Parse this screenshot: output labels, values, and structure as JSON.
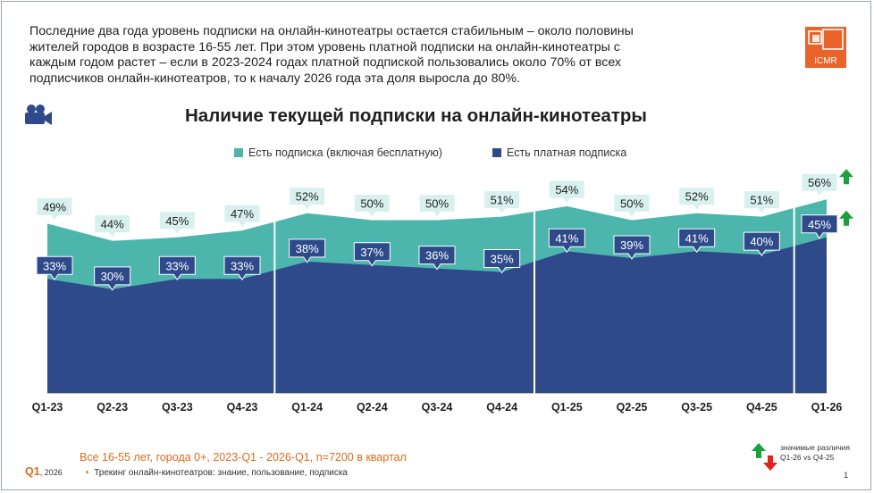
{
  "intro_lines": [
    "Последние  два года уровень подписки  на онлайн-кинотеатры  остается стабильным  – около половины",
    "жителей городов в возрасте 16-55 лет. При этом уровень платной подписки  на онлайн-кинотеатры  с",
    "каждым  годом растет – если в 2023-2024 годах платной подпиской  пользовались  около 70% от всех",
    "подписчиков  онлайн-кинотеатров,  то к началу 2026 года эта доля выросла до 80%."
  ],
  "logo_text": "ICMR",
  "colors": {
    "any_subscription": "#4db6ac",
    "paid_subscription": "#2e4a8a",
    "up_arrow": "#19a23a",
    "down_arrow": "#e0221b",
    "accent": "#e06a1a"
  },
  "chart_data": {
    "type": "area",
    "title": "Наличие текущей подписки на онлайн-кинотеатры",
    "categories": [
      "Q1-23",
      "Q2-23",
      "Q3-23",
      "Q4-23",
      "Q1-24",
      "Q2-24",
      "Q3-24",
      "Q4-24",
      "Q1-25",
      "Q2-25",
      "Q3-25",
      "Q4-25",
      "Q1-26"
    ],
    "series": [
      {
        "name": "Есть подписка (включая бесплатную)",
        "values": [
          49,
          44,
          45,
          47,
          52,
          50,
          50,
          51,
          54,
          50,
          52,
          51,
          56
        ],
        "labels": [
          "49%",
          "44%",
          "45%",
          "47%",
          "52%",
          "50%",
          "50%",
          "51%",
          "54%",
          "50%",
          "52%",
          "51%",
          "56%"
        ]
      },
      {
        "name": "Есть платная  подписка",
        "values": [
          33,
          30,
          33,
          33,
          38,
          37,
          36,
          35,
          41,
          39,
          41,
          40,
          45
        ],
        "labels": [
          "33%",
          "30%",
          "33%",
          "33%",
          "38%",
          "37%",
          "36%",
          "35%",
          "41%",
          "39%",
          "41%",
          "40%",
          "45%"
        ]
      }
    ],
    "ylim": [
      0,
      62
    ],
    "year_separators_after": [
      "Q4-23",
      "Q4-24",
      "Q4-25"
    ],
    "significant_up_last": [
      true,
      true
    ]
  },
  "base_note": "Все 16-55 лет, города 0+, 2023-Q1 - 2026-Q1, n=7200 в квартал",
  "footer": {
    "wave": "Q1",
    "year": ", 2026",
    "text": "Трекинг онлайн-кинотеатров: знание, пользование, подписка"
  },
  "page_number": "1",
  "sig_legend": {
    "line1": "значимые различия",
    "line2": "Q1-26 vs Q4-25"
  }
}
